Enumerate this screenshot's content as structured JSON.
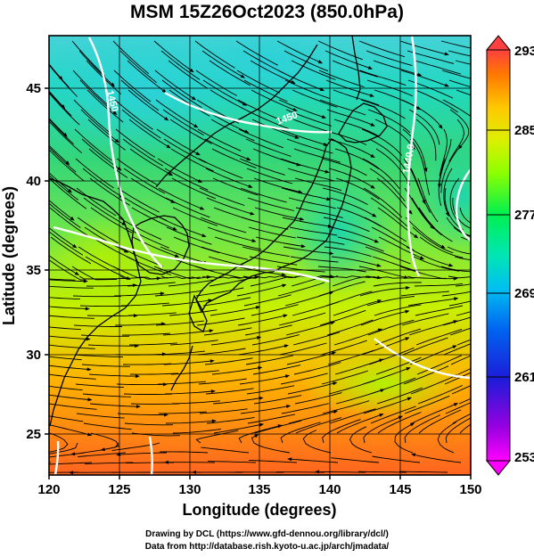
{
  "title": "MSM 15Z26Oct2023 (850.0hPa)",
  "map": {
    "x_axis": {
      "label": "Longitude (degrees)",
      "range": [
        120,
        150
      ],
      "ticks": [
        "120",
        "125",
        "130",
        "135",
        "140",
        "145",
        "150"
      ]
    },
    "y_axis": {
      "label": "Latitude  (degrees)",
      "range": [
        22.4,
        47.6
      ],
      "ticks": [
        "25",
        "30",
        "35",
        "40",
        "45"
      ]
    },
    "field": "temperature (shaded), height contours (white), wind streamlines (black)",
    "contour_labels": [
      {
        "text": "1450",
        "lon": 124.3,
        "lat": 43.8,
        "rotate": 75
      },
      {
        "text": "1450",
        "lon": 137.0,
        "lat": 42.7,
        "rotate": -20
      },
      {
        "text": "1440.0",
        "lon": 145.8,
        "lat": 40.5,
        "rotate": -80
      }
    ]
  },
  "colorbar": {
    "min": 253,
    "max": 293,
    "labels": [
      "293",
      "285",
      "277",
      "269",
      "261",
      "253"
    ],
    "colors": [
      "#ff00ff",
      "#7a00e0",
      "#1a1ad8",
      "#0050f0",
      "#00b4f0",
      "#00dcc8",
      "#00f064",
      "#78ff00",
      "#c8f000",
      "#ffdc00",
      "#ffa000",
      "#ff6400",
      "#ff4040"
    ]
  },
  "footer": {
    "line1": "Drawing by DCL (https://www.gfd-dennou.org/library/dcl/)",
    "line2": "Data from http://database.rish.kyoto-u.ac.jp/arch/jmadata/"
  }
}
